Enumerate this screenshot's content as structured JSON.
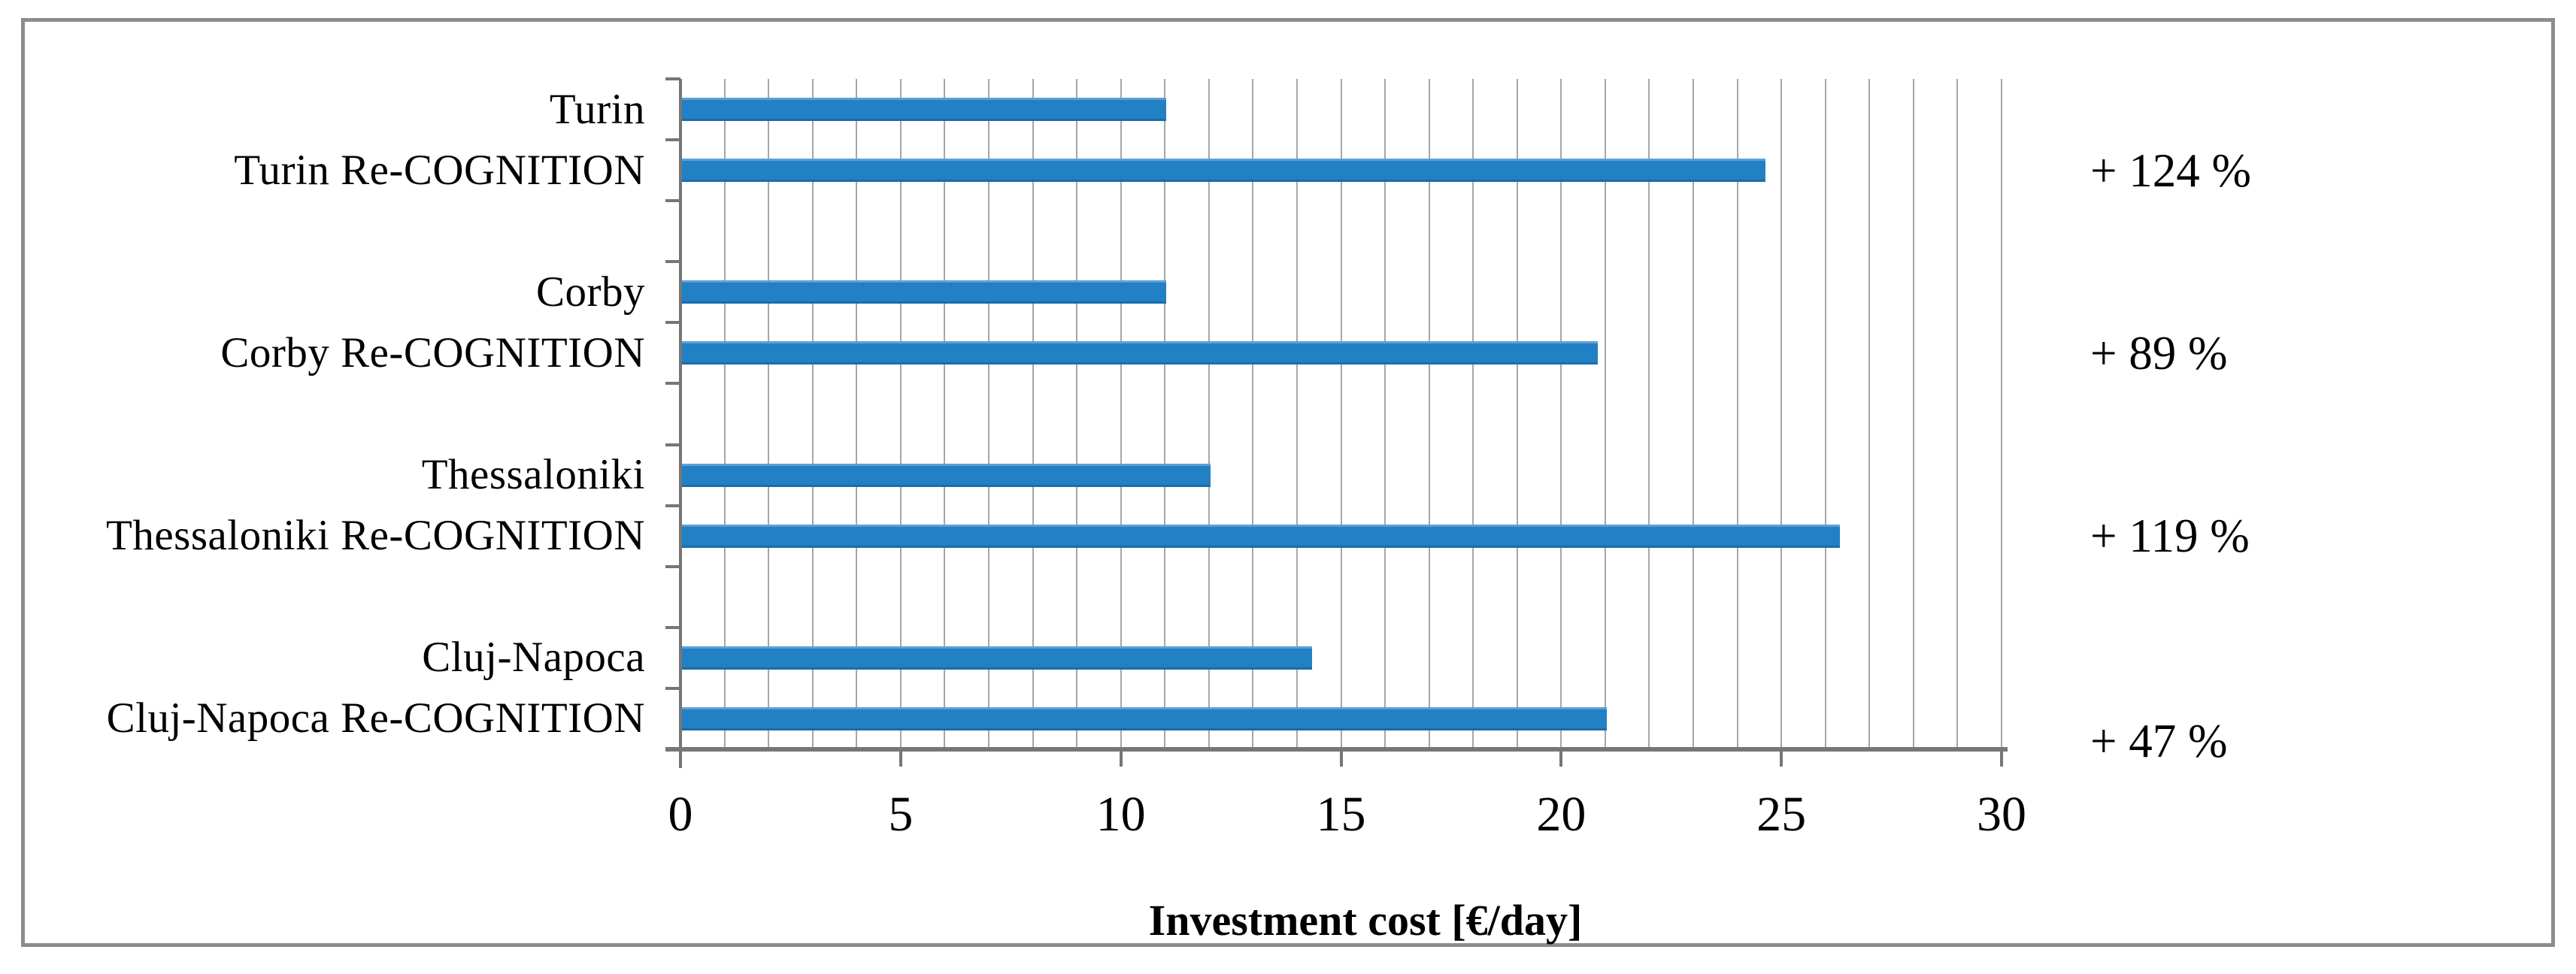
{
  "figure": {
    "background_color": "#FFFFFF",
    "frame_color": "#8C8C8C"
  },
  "chart_data": {
    "type": "bar",
    "orientation": "horizontal",
    "xlabel": "Investment cost [€/day]",
    "xlim": [
      0,
      30
    ],
    "x_ticks": [
      0,
      5,
      10,
      15,
      20,
      25,
      30
    ],
    "minor_gridline_interval": 1,
    "grid": "vertical-minor-gridlines-on",
    "legend": "none",
    "bar_color": "#2280C4",
    "gridline_color": "#A6A6A6",
    "axis_color": "#767676",
    "slot_count": 11,
    "bars": [
      {
        "label": "Turin",
        "value": 11.0,
        "slot": 1
      },
      {
        "label": "Turin Re-COGNITION",
        "value": 24.6,
        "slot": 2
      },
      {
        "label": "Corby",
        "value": 11.0,
        "slot": 4
      },
      {
        "label": "Corby Re-COGNITION",
        "value": 20.8,
        "slot": 5
      },
      {
        "label": "Thessaloniki",
        "value": 12.0,
        "slot": 7
      },
      {
        "label": "Thessaloniki Re-COGNITION",
        "value": 26.3,
        "slot": 8
      },
      {
        "label": "Cluj-Napoca",
        "value": 14.3,
        "slot": 10
      },
      {
        "label": "Cluj-Napoca Re-COGNITION",
        "value": 21.0,
        "slot": 11
      }
    ],
    "annotations": [
      {
        "text": "+ 124 %",
        "applies_to": "Turin Re-COGNITION",
        "slot": 2,
        "dy": 0
      },
      {
        "text": "+ 89 %",
        "applies_to": "Corby Re-COGNITION",
        "slot": 5,
        "dy": 0
      },
      {
        "text": "+ 119 %",
        "applies_to": "Thessaloniki Re-COGNITION",
        "slot": 8,
        "dy": 0
      },
      {
        "text": "+ 47 %",
        "applies_to": "Cluj-Napoca Re-COGNITION",
        "slot": 11,
        "dy": 30
      }
    ]
  }
}
